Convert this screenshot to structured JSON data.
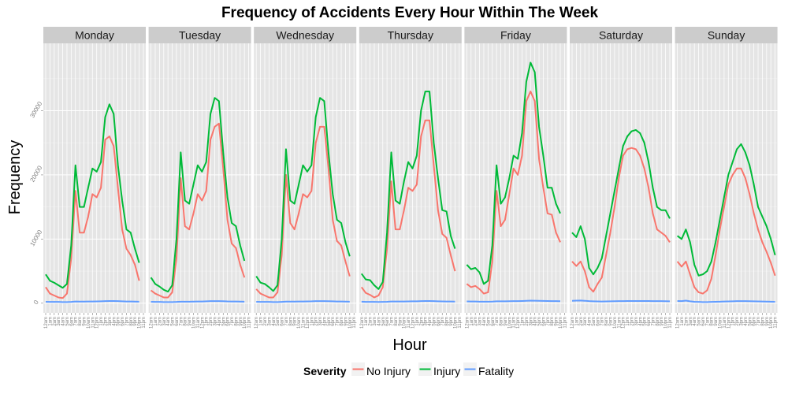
{
  "chart_data": {
    "type": "line",
    "title": "Frequency of Accidents Every Hour Within The Week",
    "xlabel": "Hour",
    "ylabel": "Frequency",
    "ylim": [
      -1500,
      40500
    ],
    "yticks": [
      0,
      10000,
      20000,
      30000
    ],
    "ytick_labels": [
      "0",
      "10000",
      "20000",
      "30000"
    ],
    "hours": [
      "12am",
      "1am",
      "2am",
      "3am",
      "4am",
      "5am",
      "6am",
      "7am",
      "8am",
      "9am",
      "10am",
      "11am",
      "12pm",
      "1pm",
      "2pm",
      "3pm",
      "4pm",
      "5pm",
      "6pm",
      "7pm",
      "8pm",
      "9pm",
      "10pm",
      "11pm"
    ],
    "grid": true,
    "legend": {
      "title": "Severity",
      "placement": "bottom",
      "items": [
        {
          "label": "No Injury",
          "color": "#F8766D"
        },
        {
          "label": "Injury",
          "color": "#00BA38"
        },
        {
          "label": "Fatality",
          "color": "#619CFF"
        }
      ]
    },
    "colors": {
      "No Injury": "#F8766D",
      "Injury": "#00BA38",
      "Fatality": "#619CFF"
    },
    "panels": [
      {
        "name": "Monday",
        "series": {
          "No Injury": [
            2500,
            1500,
            1200,
            900,
            800,
            1500,
            7000,
            17500,
            11000,
            11000,
            13500,
            17000,
            16500,
            18000,
            25500,
            26000,
            24500,
            18000,
            11500,
            8500,
            7500,
            6000,
            3500,
            null
          ],
          "Injury": [
            4500,
            3500,
            3200,
            2800,
            2400,
            3000,
            9000,
            21500,
            15000,
            15000,
            18000,
            21000,
            20500,
            22000,
            29000,
            31000,
            29500,
            21500,
            16000,
            11500,
            11000,
            8500,
            6300,
            null
          ],
          "Fatality": [
            220,
            200,
            200,
            200,
            180,
            180,
            210,
            260,
            250,
            250,
            260,
            270,
            280,
            300,
            330,
            350,
            340,
            320,
            290,
            270,
            260,
            250,
            240,
            null
          ]
        }
      },
      {
        "name": "Tuesday",
        "series": {
          "No Injury": [
            2000,
            1500,
            1200,
            900,
            900,
            1700,
            7000,
            19500,
            12000,
            11500,
            14000,
            17000,
            16000,
            17500,
            25500,
            27500,
            28000,
            21000,
            13000,
            9300,
            8600,
            6000,
            4000,
            null
          ],
          "Injury": [
            4000,
            3000,
            2600,
            2100,
            1800,
            2800,
            10000,
            23500,
            16000,
            15500,
            18500,
            21500,
            20500,
            22000,
            29500,
            32000,
            31500,
            23500,
            16500,
            12500,
            12000,
            9000,
            6600,
            null
          ],
          "Fatality": [
            220,
            200,
            200,
            180,
            180,
            180,
            200,
            240,
            240,
            240,
            250,
            260,
            270,
            290,
            320,
            330,
            330,
            310,
            280,
            270,
            260,
            250,
            230,
            null
          ]
        }
      },
      {
        "name": "Wednesday",
        "series": {
          "No Injury": [
            2200,
            1500,
            1200,
            900,
            900,
            1700,
            7500,
            20000,
            12500,
            11500,
            14000,
            17000,
            16500,
            17500,
            25000,
            27500,
            27500,
            21000,
            13000,
            9700,
            9000,
            6500,
            4200,
            null
          ],
          "Injury": [
            4200,
            3200,
            3000,
            2500,
            1900,
            2800,
            10000,
            24000,
            16000,
            15500,
            18500,
            21500,
            20500,
            21500,
            29000,
            32000,
            31500,
            23500,
            17000,
            13000,
            12500,
            9500,
            7300,
            null
          ],
          "Fatality": [
            220,
            200,
            200,
            200,
            180,
            180,
            210,
            250,
            250,
            250,
            260,
            270,
            280,
            290,
            320,
            330,
            330,
            310,
            290,
            270,
            260,
            250,
            240,
            null
          ]
        }
      },
      {
        "name": "Thursday",
        "series": {
          "No Injury": [
            2500,
            1600,
            1300,
            900,
            1200,
            2500,
            8500,
            19000,
            11500,
            11500,
            14500,
            18000,
            17500,
            18500,
            26000,
            28500,
            28500,
            21500,
            14500,
            10800,
            10200,
            7500,
            5000,
            null
          ],
          "Injury": [
            4600,
            3700,
            3600,
            2800,
            2200,
            3300,
            11000,
            23500,
            16000,
            15500,
            19000,
            22000,
            21000,
            23000,
            30000,
            33000,
            33000,
            25000,
            19500,
            14500,
            14300,
            10500,
            8500,
            null
          ],
          "Fatality": [
            230,
            210,
            210,
            200,
            190,
            200,
            220,
            260,
            260,
            260,
            270,
            280,
            290,
            300,
            330,
            340,
            340,
            330,
            300,
            280,
            270,
            260,
            250,
            null
          ]
        }
      },
      {
        "name": "Friday",
        "series": {
          "No Injury": [
            3000,
            2500,
            2700,
            2200,
            1500,
            1700,
            6500,
            17500,
            12000,
            13000,
            17000,
            21000,
            20000,
            23000,
            31500,
            33000,
            31500,
            22500,
            18000,
            14000,
            13800,
            11000,
            9500,
            null
          ],
          "Injury": [
            6000,
            5300,
            5500,
            4800,
            3000,
            3500,
            9000,
            21500,
            15500,
            16500,
            19500,
            23000,
            22500,
            26500,
            34500,
            37500,
            36000,
            27500,
            23000,
            18000,
            18000,
            15500,
            14000,
            null
          ],
          "Fatality": [
            280,
            260,
            260,
            240,
            230,
            230,
            250,
            300,
            290,
            290,
            310,
            320,
            330,
            350,
            380,
            400,
            390,
            370,
            360,
            340,
            330,
            320,
            310,
            null
          ]
        }
      },
      {
        "name": "Saturday",
        "series": {
          "No Injury": [
            6500,
            5800,
            6500,
            5000,
            2500,
            1800,
            3000,
            4000,
            7500,
            11000,
            15000,
            19500,
            23000,
            24000,
            24200,
            24000,
            23000,
            21000,
            18000,
            14000,
            11500,
            11000,
            10500,
            9500
          ],
          "Injury": [
            11000,
            10300,
            12000,
            10000,
            5500,
            4500,
            5500,
            7000,
            10500,
            14000,
            17500,
            21000,
            24500,
            26000,
            26800,
            27000,
            26500,
            25000,
            22000,
            18000,
            15000,
            14500,
            14500,
            13200
          ],
          "Fatality": [
            380,
            400,
            420,
            380,
            320,
            300,
            280,
            270,
            280,
            300,
            310,
            320,
            330,
            340,
            350,
            350,
            350,
            340,
            340,
            330,
            320,
            320,
            310,
            300
          ]
        }
      },
      {
        "name": "Sunday",
        "series": {
          "No Injury": [
            6500,
            5700,
            6500,
            4500,
            2500,
            1700,
            1500,
            2000,
            3800,
            7500,
            11500,
            15000,
            18500,
            20000,
            21000,
            21000,
            19500,
            17000,
            14000,
            11500,
            9500,
            8000,
            6300,
            4300
          ],
          "Injury": [
            10500,
            10000,
            11500,
            9500,
            6000,
            4300,
            4500,
            5000,
            6500,
            9500,
            13000,
            16500,
            20000,
            22000,
            24000,
            24800,
            23500,
            21500,
            18500,
            15000,
            13500,
            12000,
            10000,
            7500
          ],
          "Fatality": [
            350,
            320,
            400,
            300,
            220,
            200,
            180,
            180,
            200,
            220,
            240,
            260,
            280,
            300,
            320,
            330,
            320,
            310,
            300,
            280,
            270,
            250,
            230,
            220
          ]
        }
      }
    ]
  }
}
